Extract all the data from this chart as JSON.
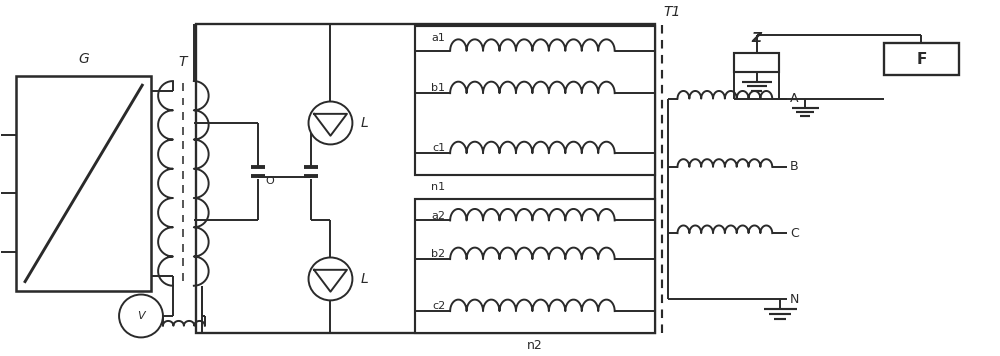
{
  "bg_color": "#ffffff",
  "line_color": "#2a2a2a",
  "line_width": 1.4,
  "fig_width": 10.0,
  "fig_height": 3.56,
  "dpi": 100,
  "xlim": [
    0,
    10
  ],
  "ylim": [
    0,
    3.56
  ]
}
